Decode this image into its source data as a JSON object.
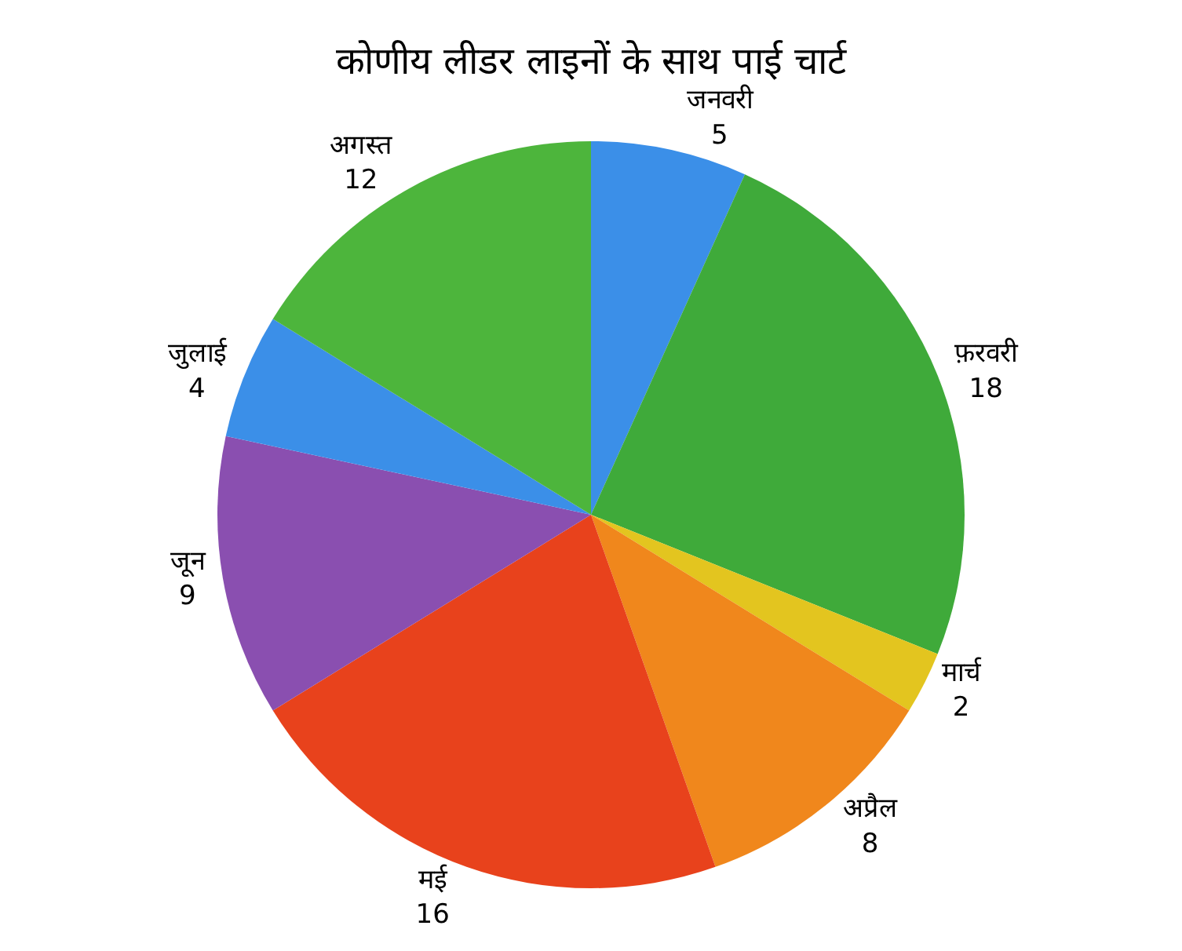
{
  "chart_data": {
    "type": "pie",
    "title": "कोणीय लीडर लाइनों के साथ पाई चार्ट",
    "categories": [
      "जनवरी",
      "फ़रवरी",
      "मार्च",
      "अप्रैल",
      "मई",
      "जून",
      "जुलाई",
      "अगस्त"
    ],
    "values": [
      5,
      18,
      2,
      8,
      16,
      9,
      4,
      12
    ],
    "colors": [
      "#3b8fe8",
      "#3faa3a",
      "#e3c51f",
      "#f0871c",
      "#e8421c",
      "#8a4fb0",
      "#3b8fe8",
      "#4db53c"
    ],
    "data_labels": true,
    "legend": false
  }
}
